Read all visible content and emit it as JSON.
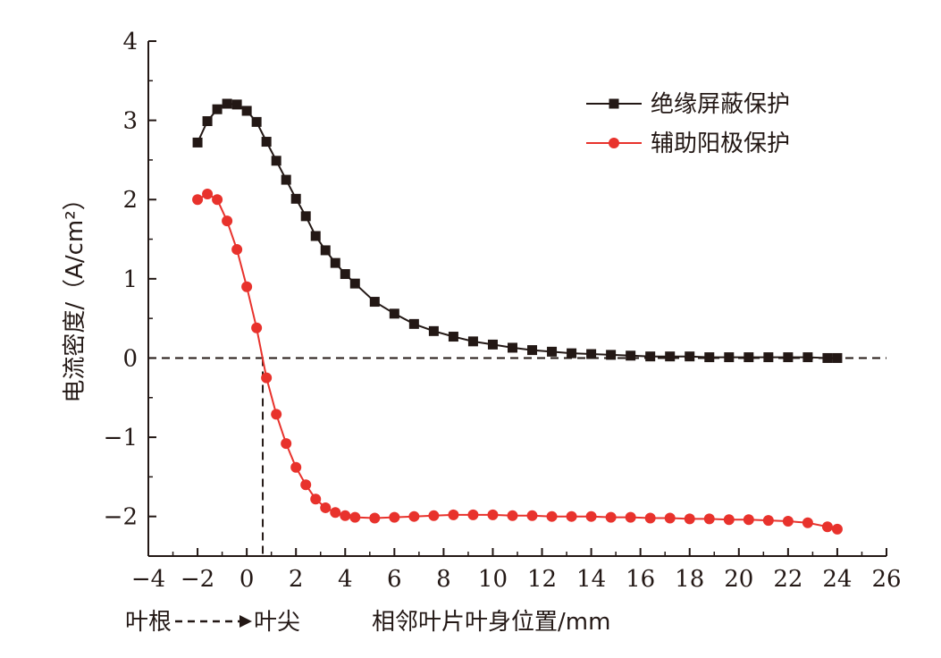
{
  "chart_data": {
    "type": "line",
    "xlabel": "相邻叶片叶身位置/mm",
    "xlabel_prefix_left": "叶根",
    "xlabel_prefix_right": "叶尖",
    "ylabel": "电流密度/（A/cm²）",
    "xlim": [
      -4,
      26
    ],
    "ylim": [
      -2.5,
      4
    ],
    "x_ticks": [
      -4,
      -2,
      0,
      2,
      4,
      6,
      8,
      10,
      12,
      14,
      16,
      18,
      20,
      22,
      24,
      26
    ],
    "x_tick_labels": [
      "−4",
      "−2",
      "0",
      "2",
      "4",
      "6",
      "8",
      "10",
      "12",
      "14",
      "16",
      "18",
      "20",
      "22",
      "24",
      "26"
    ],
    "y_ticks": [
      -2,
      -1,
      0,
      1,
      2,
      3,
      4
    ],
    "y_tick_labels": [
      "−2",
      "−1",
      "0",
      "1",
      "2",
      "3",
      "4"
    ],
    "reference_lines": {
      "horizontal_y": 0,
      "vertical_x": 0.65
    },
    "legend_position": "top-right",
    "grid": false,
    "series": [
      {
        "name": "绝缘屏蔽保护",
        "color": "#231815",
        "marker": "square",
        "x": [
          -2.0,
          -1.6,
          -1.2,
          -0.8,
          -0.4,
          0.0,
          0.4,
          0.8,
          1.2,
          1.6,
          2.0,
          2.4,
          2.8,
          3.2,
          3.6,
          4.0,
          4.4,
          5.2,
          6.0,
          6.8,
          7.6,
          8.4,
          9.2,
          10.0,
          10.8,
          11.6,
          12.4,
          13.2,
          14.0,
          14.8,
          15.6,
          16.4,
          17.2,
          18.0,
          18.8,
          19.6,
          20.4,
          21.2,
          22.0,
          22.8,
          23.6,
          24.0
        ],
        "y": [
          2.72,
          2.99,
          3.14,
          3.21,
          3.2,
          3.12,
          2.98,
          2.73,
          2.49,
          2.25,
          2.01,
          1.79,
          1.54,
          1.36,
          1.2,
          1.06,
          0.94,
          0.71,
          0.56,
          0.43,
          0.34,
          0.27,
          0.21,
          0.17,
          0.13,
          0.1,
          0.08,
          0.06,
          0.05,
          0.04,
          0.03,
          0.02,
          0.02,
          0.02,
          0.01,
          0.01,
          0.01,
          0.01,
          0.01,
          0.01,
          0.0,
          0.0
        ]
      },
      {
        "name": "辅助阳极保护",
        "color": "#e8322c",
        "marker": "circle",
        "x": [
          -2.0,
          -1.6,
          -1.2,
          -0.8,
          -0.4,
          0.0,
          0.4,
          0.8,
          1.2,
          1.6,
          2.0,
          2.4,
          2.8,
          3.2,
          3.6,
          4.0,
          4.4,
          5.2,
          6.0,
          6.8,
          7.6,
          8.4,
          9.2,
          10.0,
          10.8,
          11.6,
          12.4,
          13.2,
          14.0,
          14.8,
          15.6,
          16.4,
          17.2,
          18.0,
          18.8,
          19.6,
          20.4,
          21.2,
          22.0,
          22.8,
          23.6,
          24.0
        ],
        "y": [
          2.0,
          2.07,
          2.0,
          1.73,
          1.37,
          0.9,
          0.38,
          -0.25,
          -0.71,
          -1.08,
          -1.38,
          -1.6,
          -1.78,
          -1.89,
          -1.95,
          -1.99,
          -2.01,
          -2.02,
          -2.01,
          -2.0,
          -1.99,
          -1.98,
          -1.98,
          -1.98,
          -1.99,
          -1.99,
          -2.0,
          -2.0,
          -2.0,
          -2.01,
          -2.01,
          -2.02,
          -2.02,
          -2.03,
          -2.03,
          -2.04,
          -2.04,
          -2.05,
          -2.06,
          -2.08,
          -2.13,
          -2.16
        ]
      }
    ]
  }
}
